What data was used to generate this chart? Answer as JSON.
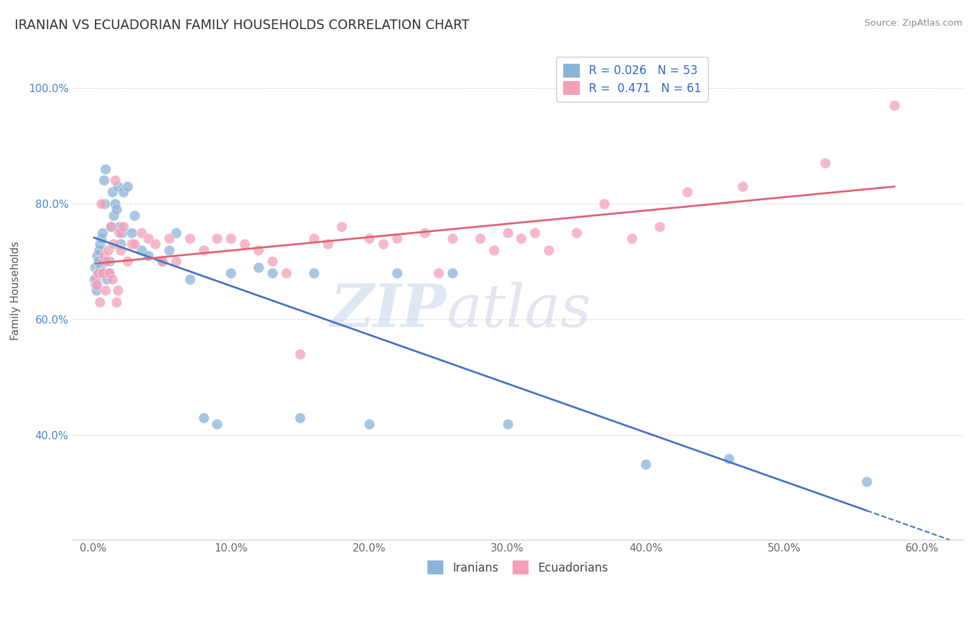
{
  "title": "IRANIAN VS ECUADORIAN FAMILY HOUSEHOLDS CORRELATION CHART",
  "source_text": "Source: ZipAtlas.com",
  "ylabel": "Family Households",
  "x_tick_labels": [
    "0.0%",
    "10.0%",
    "20.0%",
    "30.0%",
    "40.0%",
    "50.0%",
    "60.0%"
  ],
  "x_tick_vals": [
    0.0,
    10.0,
    20.0,
    30.0,
    40.0,
    50.0,
    60.0
  ],
  "y_tick_labels": [
    "40.0%",
    "60.0%",
    "80.0%",
    "100.0%"
  ],
  "y_tick_vals": [
    40.0,
    60.0,
    80.0,
    100.0
  ],
  "xlim": [
    -1.5,
    63
  ],
  "ylim": [
    22,
    108
  ],
  "bottom_legend": [
    "Iranians",
    "Ecuadorians"
  ],
  "blue_color": "#8ab4d8",
  "pink_color": "#f4a0b8",
  "blue_line_color": "#4472c4",
  "pink_line_color": "#e06070",
  "dashed_line_color": "#bbbbbb",
  "grid_color": "#dddddd",
  "background_color": "#ffffff",
  "iranians_x": [
    0.1,
    0.15,
    0.2,
    0.25,
    0.3,
    0.35,
    0.4,
    0.45,
    0.5,
    0.55,
    0.6,
    0.65,
    0.7,
    0.75,
    0.8,
    0.85,
    0.9,
    1.0,
    1.1,
    1.2,
    1.3,
    1.4,
    1.5,
    1.6,
    1.7,
    1.8,
    1.9,
    2.0,
    2.1,
    2.2,
    2.5,
    2.8,
    3.0,
    3.5,
    4.0,
    5.0,
    5.5,
    6.0,
    7.0,
    8.0,
    9.0,
    10.0,
    12.0,
    13.0,
    15.0,
    16.0,
    20.0,
    22.0,
    26.0,
    30.0,
    40.0,
    46.0,
    56.0
  ],
  "iranians_y": [
    67,
    69,
    66,
    65,
    71,
    68,
    70,
    72,
    73,
    69,
    74,
    68,
    75,
    70,
    84,
    80,
    86,
    67,
    68,
    70,
    76,
    82,
    78,
    80,
    79,
    83,
    76,
    73,
    75,
    82,
    83,
    75,
    78,
    72,
    71,
    70,
    72,
    75,
    67,
    43,
    42,
    68,
    69,
    68,
    43,
    68,
    42,
    68,
    68,
    42,
    35,
    36,
    32
  ],
  "ecuadorians_x": [
    0.2,
    0.3,
    0.4,
    0.5,
    0.6,
    0.7,
    0.8,
    0.9,
    1.0,
    1.1,
    1.2,
    1.3,
    1.4,
    1.5,
    1.6,
    1.7,
    1.8,
    1.9,
    2.0,
    2.2,
    2.5,
    2.8,
    3.0,
    3.5,
    4.0,
    4.5,
    5.0,
    5.5,
    6.0,
    7.0,
    8.0,
    9.0,
    10.0,
    11.0,
    12.0,
    13.0,
    14.0,
    15.0,
    16.0,
    17.0,
    18.0,
    20.0,
    21.0,
    22.0,
    24.0,
    25.0,
    26.0,
    28.0,
    29.0,
    30.0,
    31.0,
    32.0,
    33.0,
    35.0,
    37.0,
    39.0,
    41.0,
    43.0,
    47.0,
    53.0,
    58.0
  ],
  "ecuadorians_y": [
    67,
    66,
    68,
    63,
    80,
    68,
    71,
    65,
    70,
    72,
    68,
    76,
    67,
    73,
    84,
    63,
    65,
    75,
    72,
    76,
    70,
    73,
    73,
    75,
    74,
    73,
    70,
    74,
    70,
    74,
    72,
    74,
    74,
    73,
    72,
    70,
    68,
    54,
    74,
    73,
    76,
    74,
    73,
    74,
    75,
    68,
    74,
    74,
    72,
    75,
    74,
    75,
    72,
    75,
    80,
    74,
    76,
    82,
    83,
    87,
    97
  ],
  "legend_R1": "R = 0.026",
  "legend_N1": "N = 53",
  "legend_R2": "R =  0.471",
  "legend_N2": "N = 61"
}
